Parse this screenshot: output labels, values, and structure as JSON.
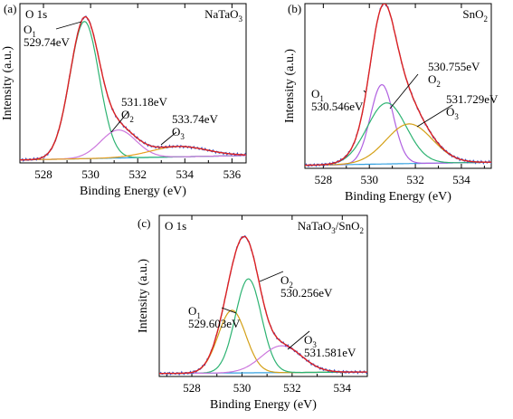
{
  "chart_data": [
    {
      "type": "line",
      "panel_label": "(a)",
      "region_label": "O 1s",
      "sample_label": {
        "base": "NaTaO",
        "sub": "3"
      },
      "xlabel": "Binding Energy (eV)",
      "ylabel": "Intensity (a.u.)",
      "xlim": [
        527,
        536.6
      ],
      "ylim": [
        0,
        1.08
      ],
      "xticks": [
        528,
        530,
        532,
        534,
        536
      ],
      "background": [
        0.02,
        0.05
      ],
      "peaks": [
        {
          "name": "O1",
          "center": 529.74,
          "height": 0.93,
          "sigma": 0.62,
          "color": "#2db372"
        },
        {
          "name": "O2",
          "center": 531.18,
          "height": 0.19,
          "sigma": 0.75,
          "color": "#cc77dd"
        },
        {
          "name": "O3",
          "center": 533.74,
          "height": 0.07,
          "sigma": 1.2,
          "color": "#e8a020"
        }
      ],
      "fit_color": "#dd2222",
      "raw_color": "#3355cc",
      "bg_color": "#33a0e0",
      "annotations": [
        {
          "lines": [
            {
              "base": "O",
              "sub": "1"
            },
            {
              "base": "529.74eV"
            }
          ]
        },
        {
          "lines": [
            {
              "base": "531.18eV"
            },
            {
              "base": "O",
              "sub": "2"
            }
          ]
        },
        {
          "lines": [
            {
              "base": "533.74eV"
            },
            {
              "base": "O",
              "sub": "3"
            }
          ]
        }
      ]
    },
    {
      "type": "line",
      "panel_label": "(b)",
      "region_label": "",
      "sample_label": {
        "base": "SnO",
        "sub": "2"
      },
      "xlabel": "Binding Energy (eV)",
      "ylabel": "Intensity (a.u.)",
      "xlim": [
        527.2,
        535.3
      ],
      "ylim": [
        0,
        1.08
      ],
      "xticks": [
        528,
        530,
        532,
        534
      ],
      "background": [
        0.02,
        0.04
      ],
      "peaks": [
        {
          "name": "O1",
          "center": 530.546,
          "height": 0.52,
          "sigma": 0.5,
          "color": "#b060e0"
        },
        {
          "name": "O2",
          "center": 530.755,
          "height": 0.4,
          "sigma": 0.85,
          "color": "#2db372"
        },
        {
          "name": "O3",
          "center": 531.729,
          "height": 0.26,
          "sigma": 1.0,
          "color": "#d4a017"
        }
      ],
      "fit_color": "#dd2222",
      "raw_color": "#3355cc",
      "bg_color": "#33a0e0",
      "annotations": [
        {
          "lines": [
            {
              "base": "O",
              "sub": "1"
            },
            {
              "base": "530.546eV"
            }
          ]
        },
        {
          "lines": [
            {
              "base": "530.755eV"
            },
            {
              "base": "O",
              "sub": "2"
            }
          ]
        },
        {
          "lines": [
            {
              "base": "531.729eV"
            },
            {
              "base": "O",
              "sub": "3"
            }
          ]
        }
      ]
    },
    {
      "type": "line",
      "panel_label": "(c)",
      "region_label": "O 1s",
      "sample_label": {
        "base": "NaTaO",
        "sub": "3",
        "rest": "/SnO",
        "sub2": "2"
      },
      "xlabel": "Binding Energy (eV)",
      "ylabel": "Intensity (a.u.)",
      "xlim": [
        526.7,
        535
      ],
      "ylim": [
        0,
        1.08
      ],
      "xticks": [
        528,
        530,
        532,
        534
      ],
      "background": [
        0.02,
        0.03
      ],
      "peaks": [
        {
          "name": "O1",
          "center": 529.603,
          "height": 0.42,
          "sigma": 0.55,
          "color": "#d4a017"
        },
        {
          "name": "O2",
          "center": 530.256,
          "height": 0.63,
          "sigma": 0.52,
          "color": "#2db372"
        },
        {
          "name": "O3",
          "center": 531.581,
          "height": 0.18,
          "sigma": 0.8,
          "color": "#cc77dd"
        }
      ],
      "fit_color": "#dd2222",
      "raw_color": "#3355cc",
      "bg_color": "#33a0e0",
      "annotations": [
        {
          "lines": [
            {
              "base": "O",
              "sub": "1"
            },
            {
              "base": "529.603eV"
            }
          ]
        },
        {
          "lines": [
            {
              "base": "O",
              "sub": "2"
            },
            {
              "base": "530.256eV"
            }
          ]
        },
        {
          "lines": [
            {
              "base": "O",
              "sub": "3"
            },
            {
              "base": "531.581eV"
            }
          ]
        }
      ]
    }
  ]
}
